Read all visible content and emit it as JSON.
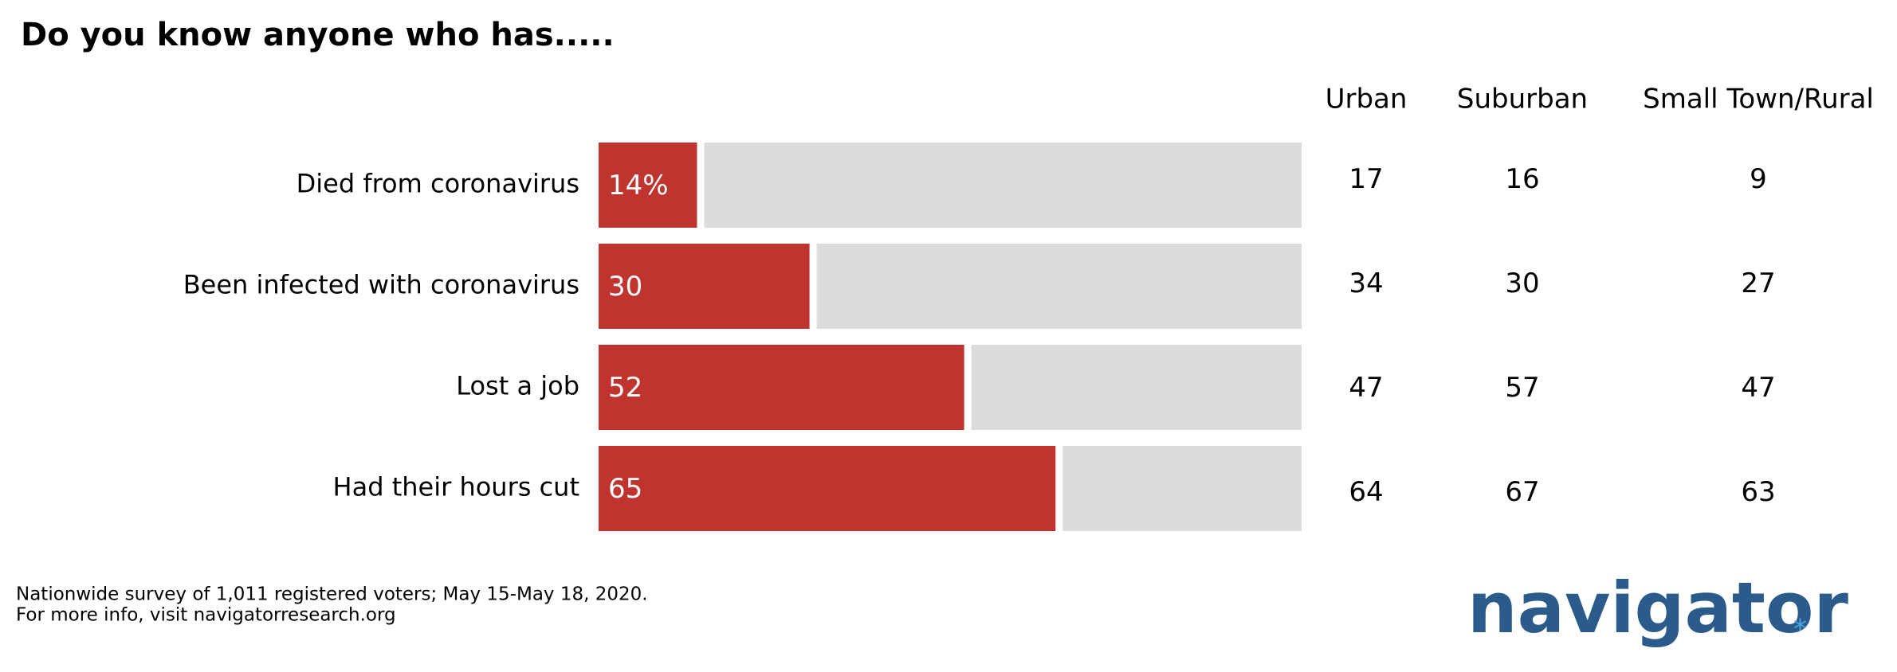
{
  "chart_data": {
    "type": "bar",
    "title": "Do you know anyone who has.....",
    "categories": [
      "Died from coronavirus",
      "Been infected with coronavirus",
      "Lost a job",
      "Had their hours cut"
    ],
    "values": [
      14,
      30,
      52,
      65
    ],
    "value_labels": [
      "14%",
      "30",
      "52",
      "65"
    ],
    "color": "#c0342f",
    "track_color": "#dcdcdc",
    "xlim": [
      0,
      100
    ],
    "table_columns": [
      "Urban",
      "Suburban",
      "Small Town/Rural"
    ],
    "table_rows": [
      [
        17,
        16,
        9
      ],
      [
        34,
        30,
        27
      ],
      [
        47,
        57,
        47
      ],
      [
        64,
        67,
        63
      ]
    ]
  },
  "footnote": [
    "Nationwide survey of 1,011 registered voters; May 15-May 18, 2020.",
    "For more info, visit navigatorresearch.org"
  ],
  "logo": "navigator"
}
